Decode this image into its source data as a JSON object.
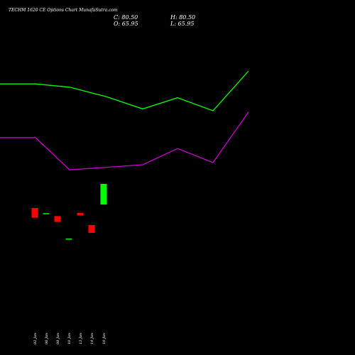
{
  "chart_data": {
    "type": "candlestick",
    "title": "TECHM 1620 CE Options Chart MunafaSutra.com",
    "ohlc_readout": {
      "close_label": "C: 80.50",
      "open_label": "O: 65.95",
      "high_label": "H: 80.50",
      "low_label": "L: 65.95"
    },
    "categories": [
      "02 Jan",
      "06 Jan",
      "08 Jan",
      "10 Jan",
      "13 Jan",
      "14 Jan",
      "16 Jan"
    ],
    "candles": [
      {
        "date": "02 Jan",
        "open": 63.5,
        "high": 63.5,
        "low": 56.7,
        "close": 56.7,
        "color": "#ff0000"
      },
      {
        "date": "06 Jan",
        "open": 59.9,
        "high": 59.9,
        "low": 59.9,
        "close": 59.9,
        "color": "#00ff00"
      },
      {
        "date": "08 Jan",
        "open": 57.8,
        "high": 57.8,
        "low": 53.7,
        "close": 53.7,
        "color": "#ff0000"
      },
      {
        "date": "10 Jan",
        "open": 42.0,
        "high": 42.0,
        "low": 42.0,
        "close": 42.0,
        "color": "#00ff00"
      },
      {
        "date": "13 Jan",
        "open": 60.0,
        "high": 60.0,
        "low": 58.3,
        "close": 58.3,
        "color": "#ff0000"
      },
      {
        "date": "14 Jan",
        "open": 51.5,
        "high": 51.5,
        "low": 46.0,
        "close": 46.0,
        "color": "#ff0000"
      },
      {
        "date": "16 Jan",
        "open": 65.95,
        "high": 80.5,
        "low": 65.95,
        "close": 80.5,
        "color": "#00ff00"
      }
    ],
    "upper_band": [
      150.9,
      150.9,
      148.6,
      141.9,
      133.3,
      141.2,
      132.0,
      160.0
    ],
    "lower_band": [
      113.1,
      113.1,
      90.4,
      92.2,
      94.0,
      105.4,
      95.5,
      131.2
    ],
    "y_range": [
      10,
      190
    ],
    "grid": false,
    "colors": {
      "background": "#000000",
      "up": "#00ff00",
      "down": "#ff0000",
      "upper_band": "#00ff00",
      "lower_band": "#cc00cc",
      "text": "#ffffff"
    }
  }
}
